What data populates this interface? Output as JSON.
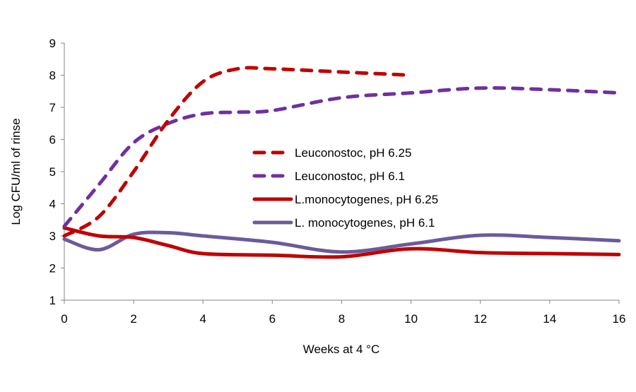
{
  "chart_data": {
    "type": "line",
    "title": "",
    "xlabel": "Weeks at 4 °C",
    "ylabel": "Log CFU/ml of rinse",
    "xlim": [
      0,
      16
    ],
    "ylim": [
      1,
      9
    ],
    "xticks": [
      0,
      2,
      4,
      6,
      8,
      10,
      12,
      14,
      16
    ],
    "yticks": [
      1,
      2,
      3,
      4,
      5,
      6,
      7,
      8,
      9
    ],
    "grid": false,
    "legend_position": "center",
    "series": [
      {
        "name": "Leuconostoc, pH 6.25",
        "color": "#C00000",
        "style": "dashed",
        "x": [
          0,
          1,
          2,
          3,
          4,
          5,
          6,
          8,
          10
        ],
        "y": [
          3.0,
          3.6,
          5.0,
          6.6,
          7.8,
          8.2,
          8.2,
          8.1,
          8.0
        ]
      },
      {
        "name": "Leuconostoc, pH 6.1",
        "color": "#7030A0",
        "style": "dashed",
        "x": [
          0,
          1,
          2,
          3,
          4,
          5,
          6,
          8,
          10,
          12,
          14,
          16
        ],
        "y": [
          3.3,
          4.6,
          5.9,
          6.5,
          6.8,
          6.85,
          6.9,
          7.3,
          7.45,
          7.6,
          7.55,
          7.45
        ]
      },
      {
        "name": "L.monocytogenes, pH 6.25",
        "color": "#C00000",
        "style": "solid",
        "x": [
          0,
          1,
          2,
          3,
          4,
          6,
          8,
          10,
          12,
          14,
          16
        ],
        "y": [
          3.25,
          3.0,
          2.95,
          2.7,
          2.45,
          2.4,
          2.35,
          2.6,
          2.48,
          2.45,
          2.42
        ]
      },
      {
        "name": "L. monocytogenes, pH 6.1",
        "color": "#6B5B9A",
        "style": "solid",
        "x": [
          0,
          1,
          2,
          3,
          4,
          6,
          8,
          10,
          12,
          14,
          16
        ],
        "y": [
          2.9,
          2.57,
          3.05,
          3.1,
          3.0,
          2.8,
          2.5,
          2.75,
          3.02,
          2.95,
          2.85
        ]
      }
    ]
  }
}
